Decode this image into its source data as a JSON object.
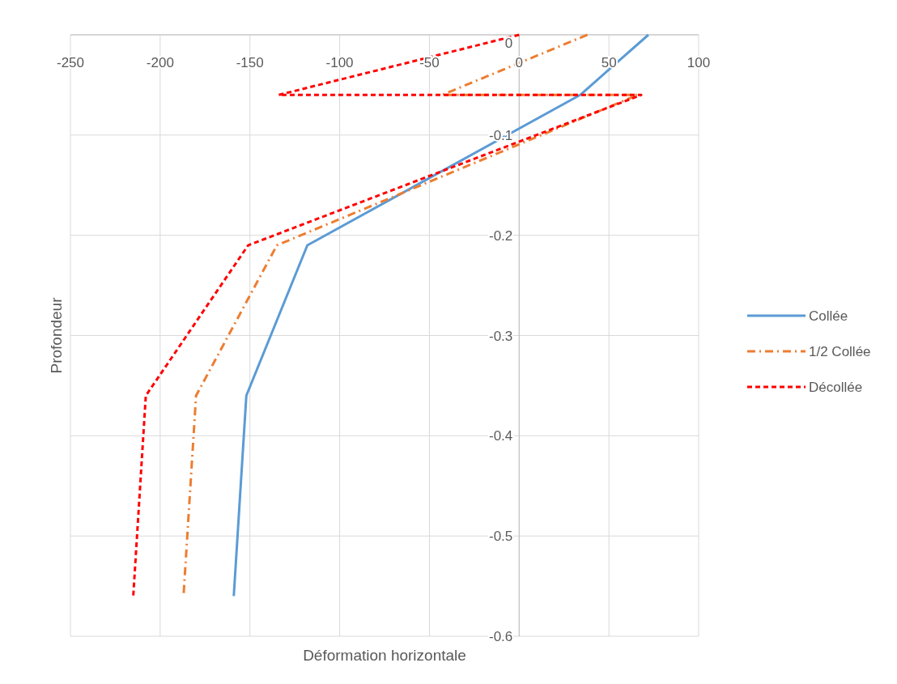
{
  "chart_data": {
    "type": "line",
    "xlabel": "Déformation horizontale",
    "ylabel": "Profondeur",
    "xlim": [
      -250,
      100
    ],
    "xticks": [
      -250,
      -200,
      -150,
      -100,
      -50,
      0,
      50,
      100
    ],
    "ylim": [
      -0.6,
      0
    ],
    "yticks": [
      -0.6,
      -0.5,
      -0.4,
      -0.3,
      -0.2,
      -0.1,
      0
    ],
    "grid": true,
    "legend": "right",
    "series": [
      {
        "name": "Collée",
        "color": "#5b9bd5",
        "line_style": "solid",
        "x": [
          72,
          34,
          -118,
          -152,
          -159
        ],
        "values": [
          0,
          -0.06,
          -0.21,
          -0.36,
          -0.56
        ]
      },
      {
        "name": "1/2 Collée",
        "color": "#ed7d31",
        "line_style": "dashdot",
        "x": [
          38,
          -43,
          66,
          -135,
          -180,
          -187
        ],
        "values": [
          0,
          -0.06,
          -0.06,
          -0.21,
          -0.36,
          -0.56
        ]
      },
      {
        "name": "Décollée",
        "color": "#ff0000",
        "line_style": "dashed",
        "x": [
          0,
          -134,
          68,
          -151,
          -208,
          -215
        ],
        "values": [
          0,
          -0.06,
          -0.06,
          -0.21,
          -0.36,
          -0.56
        ]
      }
    ]
  }
}
